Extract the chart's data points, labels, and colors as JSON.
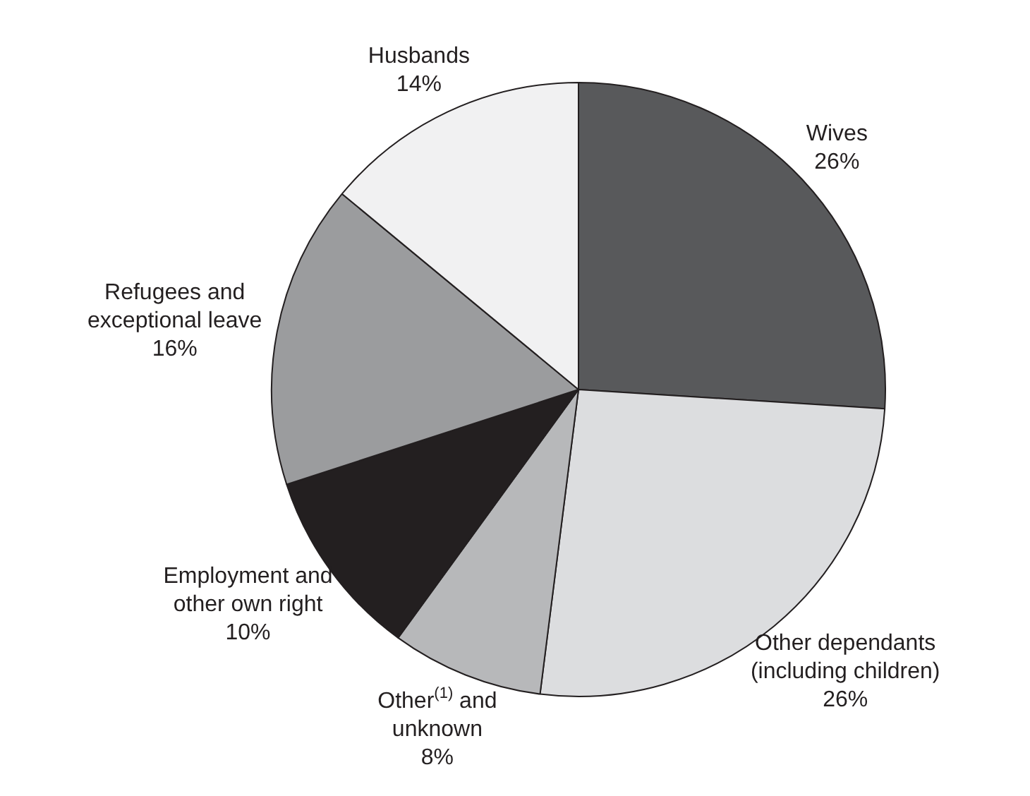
{
  "chart_data": {
    "type": "pie",
    "categories": [
      "Wives",
      "Other dependants\n(including children)",
      "Other$^{(1)}$ and\nunknown",
      "Employment and\nother own right",
      "Refugees and\nexceptional leave",
      "Husbands"
    ],
    "values": [
      26,
      26,
      8,
      10,
      16,
      14
    ],
    "value_labels": [
      "26%",
      "26%",
      "8%",
      "10%",
      "16%",
      "14%"
    ],
    "colors": [
      "#58595b",
      "#dcdddf",
      "#b7b8ba",
      "#231f20",
      "#9b9c9e",
      "#f1f1f2"
    ],
    "legend": false
  }
}
